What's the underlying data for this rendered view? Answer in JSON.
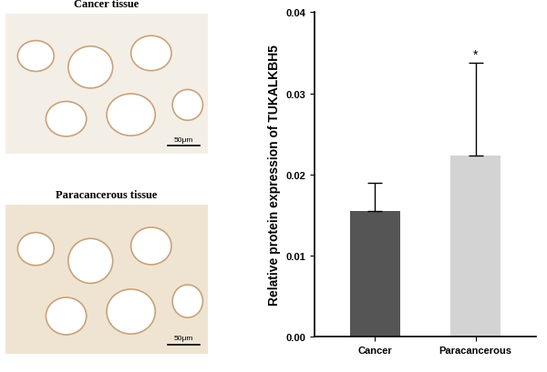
{
  "chart_data": {
    "type": "bar",
    "categories": [
      "Cancer",
      "Paracancerous"
    ],
    "values": [
      0.0155,
      0.0223
    ],
    "errors": [
      0.0035,
      0.0115
    ],
    "colors": [
      "#555555",
      "#d3d3d3"
    ],
    "y_label": "Relative protein expression of TUKALKBH5",
    "ylim": [
      0,
      0.04
    ],
    "yticks": [
      {
        "value": 0,
        "label": "0.00"
      },
      {
        "value": 0.01,
        "label": "0.01"
      },
      {
        "value": 0.02,
        "label": "0.02"
      },
      {
        "value": 0.03,
        "label": "0.03"
      },
      {
        "value": 0.04,
        "label": "0.04"
      }
    ],
    "annotations": [
      {
        "category": "Paracancerous",
        "text": "*"
      }
    ]
  },
  "panels": [
    {
      "title": "Cancer tissue",
      "scale_bar": "50μm"
    },
    {
      "title": "Paracancerous tissue",
      "scale_bar": "50μm"
    }
  ]
}
